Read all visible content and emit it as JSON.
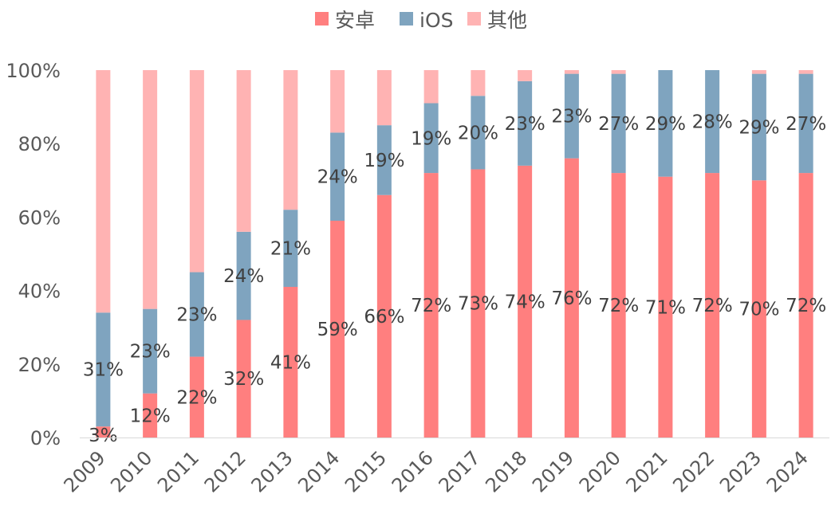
{
  "chart_data": {
    "type": "bar",
    "stacked": true,
    "title": "",
    "xlabel": "",
    "ylabel": "",
    "ylim": [
      0,
      100
    ],
    "y_ticks": [
      "0%",
      "20%",
      "40%",
      "60%",
      "80%",
      "100%"
    ],
    "legend_position": "top",
    "categories": [
      "2009",
      "2010",
      "2011",
      "2012",
      "2013",
      "2014",
      "2015",
      "2016",
      "2017",
      "2018",
      "2019",
      "2020",
      "2021",
      "2022",
      "2023",
      "2024"
    ],
    "series": [
      {
        "name": "安卓",
        "color": "#ff7f7f",
        "values": [
          3,
          12,
          22,
          32,
          41,
          59,
          66,
          72,
          73,
          74,
          76,
          72,
          71,
          72,
          70,
          72
        ],
        "labels": [
          "3%",
          "12%",
          "22%",
          "32%",
          "41%",
          "59%",
          "66%",
          "72%",
          "73%",
          "74%",
          "76%",
          "72%",
          "71%",
          "72%",
          "70%",
          "72%"
        ]
      },
      {
        "name": "iOS",
        "color": "#7fa4bf",
        "values": [
          31,
          23,
          23,
          24,
          21,
          24,
          19,
          19,
          20,
          23,
          23,
          27,
          29,
          28,
          29,
          27
        ],
        "labels": [
          "31%",
          "23%",
          "23%",
          "24%",
          "21%",
          "24%",
          "19%",
          "19%",
          "20%",
          "23%",
          "23%",
          "27%",
          "29%",
          "28%",
          "29%",
          "27%"
        ]
      },
      {
        "name": "其他",
        "color": "#ffb3b3",
        "values": [
          66,
          65,
          55,
          44,
          38,
          17,
          15,
          9,
          7,
          3,
          1,
          1,
          0.5,
          0.5,
          0.5,
          0.5
        ],
        "labels": []
      }
    ]
  }
}
